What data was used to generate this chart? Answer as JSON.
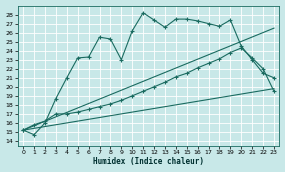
{
  "xlabel": "Humidex (Indice chaleur)",
  "bg_color": "#c8e8e8",
  "grid_color": "#b0d8d8",
  "line_color": "#1a6b60",
  "xlim": [
    -0.5,
    23.5
  ],
  "ylim": [
    13.5,
    29.0
  ],
  "yticks": [
    14,
    15,
    16,
    17,
    18,
    19,
    20,
    21,
    22,
    23,
    24,
    25,
    26,
    27,
    28
  ],
  "xticks": [
    0,
    1,
    2,
    3,
    4,
    5,
    6,
    7,
    8,
    9,
    10,
    11,
    12,
    13,
    14,
    15,
    16,
    17,
    18,
    19,
    20,
    21,
    22,
    23
  ],
  "curve1_x": [
    0,
    1,
    2,
    3,
    4,
    5,
    6,
    7,
    8,
    9,
    10,
    11,
    12,
    13,
    14,
    15,
    16,
    17,
    18,
    19,
    20,
    21,
    22,
    23
  ],
  "curve1_y": [
    15.2,
    14.7,
    16.0,
    18.7,
    21.0,
    23.2,
    23.3,
    25.5,
    25.3,
    23.0,
    26.2,
    28.2,
    27.4,
    26.6,
    27.5,
    27.5,
    27.3,
    27.0,
    26.7,
    27.4,
    24.5,
    23.0,
    21.5,
    21.0
  ],
  "curve2_x": [
    0,
    1,
    2,
    3,
    4,
    5,
    6,
    7,
    8,
    9,
    10,
    11,
    12,
    13,
    14,
    15,
    16,
    17,
    18,
    19,
    20,
    21,
    22,
    23
  ],
  "curve2_y": [
    15.2,
    15.8,
    16.2,
    17.0,
    17.0,
    17.2,
    17.5,
    17.8,
    18.1,
    18.5,
    19.0,
    19.5,
    20.0,
    20.5,
    21.1,
    21.5,
    22.1,
    22.6,
    23.1,
    23.8,
    24.3,
    23.2,
    22.0,
    19.5
  ],
  "line1_x": [
    0,
    23
  ],
  "line1_y": [
    15.2,
    26.5
  ],
  "line2_x": [
    0,
    23
  ],
  "line2_y": [
    15.2,
    19.8
  ]
}
